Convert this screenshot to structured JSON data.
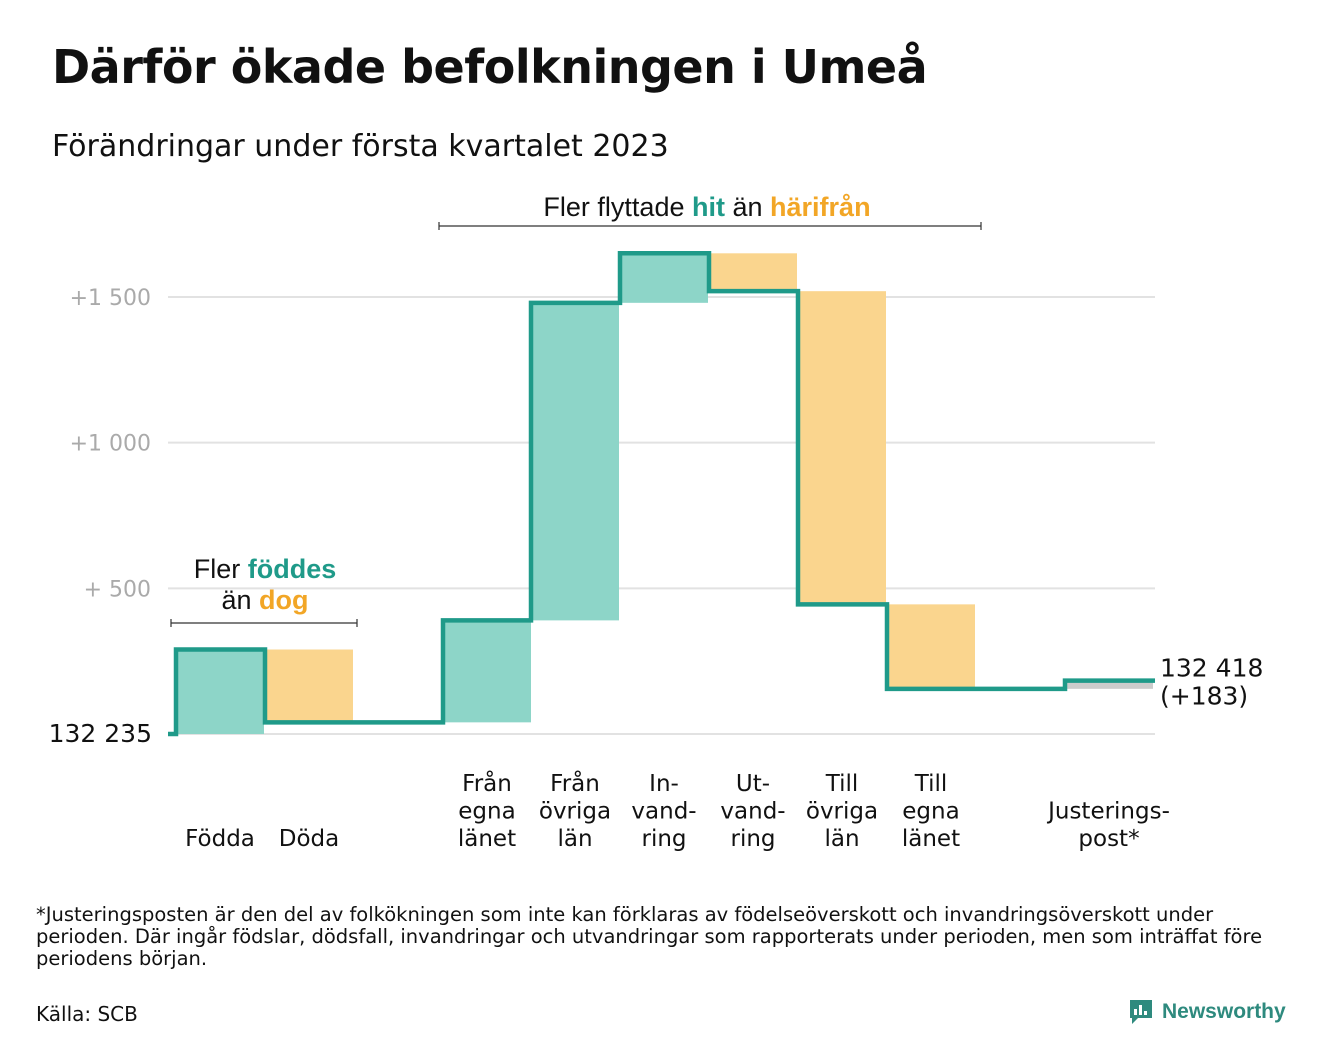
{
  "header": {
    "title": "Därför ökade befolkningen i Umeå",
    "subtitle": "Förändringar under första kvartalet 2023"
  },
  "annotations": {
    "births": {
      "line1_pre": "Fler ",
      "line1_hl": "föddes",
      "line2_pre": "än ",
      "line2_hl": "dog"
    },
    "migration": {
      "pre": "Fler flyttade ",
      "hl1": "hit",
      "mid": " än ",
      "hl2": "härifrån"
    }
  },
  "colors": {
    "increase": "#8dd5c8",
    "decrease": "#fad58e",
    "adjustment": "#cccccc",
    "line": "#1f9a89",
    "teal_text": "#1f9a89",
    "orange_text": "#f2a626",
    "grid": "#e2e2e2",
    "tick_text": "#aaaaaa"
  },
  "chart_data": {
    "type": "waterfall",
    "start": {
      "label": "132 235",
      "value": 132235
    },
    "end": {
      "label": "132 418",
      "change_label": "(+183)",
      "value": 132418
    },
    "yticks": [
      {
        "label": "+1 500",
        "value": 1500
      },
      {
        "label": "+1 000",
        "value": 1000
      },
      {
        "label": "+ 500",
        "value": 500
      }
    ],
    "ylim": [
      0,
      1650
    ],
    "steps": [
      {
        "id": "fodda",
        "label": [
          "Födda"
        ],
        "from": 0,
        "to": 290,
        "kind": "increase"
      },
      {
        "id": "doda",
        "label": [
          "Döda"
        ],
        "from": 290,
        "to": 40,
        "kind": "decrease"
      },
      {
        "id": "fran-egna",
        "label": [
          "Från",
          "egna",
          "länet"
        ],
        "from": 40,
        "to": 390,
        "kind": "increase"
      },
      {
        "id": "fran-ovriga",
        "label": [
          "Från",
          "övriga",
          "län"
        ],
        "from": 390,
        "to": 1480,
        "kind": "increase"
      },
      {
        "id": "invandring",
        "label": [
          "In-",
          "vand-",
          "ring"
        ],
        "from": 1480,
        "to": 1650,
        "kind": "increase"
      },
      {
        "id": "utvandring",
        "label": [
          "Ut-",
          "vand-",
          "ring"
        ],
        "from": 1650,
        "to": 1520,
        "kind": "decrease"
      },
      {
        "id": "till-ovriga",
        "label": [
          "Till",
          "övriga",
          "län"
        ],
        "from": 1520,
        "to": 445,
        "kind": "decrease"
      },
      {
        "id": "till-egna",
        "label": [
          "Till",
          "egna",
          "länet"
        ],
        "from": 445,
        "to": 155,
        "kind": "decrease"
      },
      {
        "id": "justering",
        "label": [
          "Justerings-",
          "post*"
        ],
        "from": 155,
        "to": 183,
        "kind": "adjustment"
      }
    ]
  },
  "footnote": "*Justeringsposten är den del av folkökningen som inte kan förklaras av födelseöverskott och invandringsöverskott under perioden. Där ingår födslar, dödsfall, invandringar och utvandringar som rapporterats under perioden, men som inträffat före periodens början.",
  "source": "Källa: SCB",
  "brand": {
    "name": "Newsworthy",
    "icon": "bar-chart-speech-bubble-icon"
  }
}
